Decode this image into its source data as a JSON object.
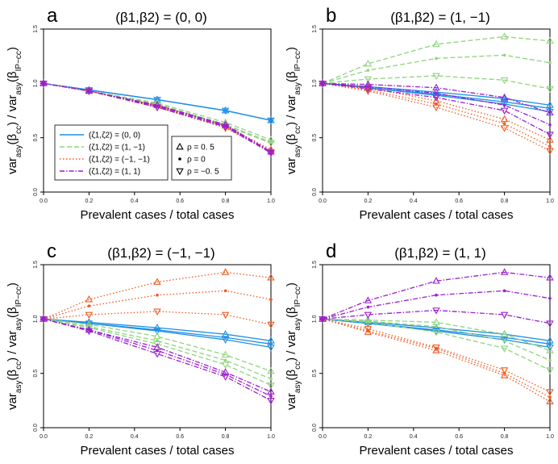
{
  "figure": {
    "xlabel": "Prevalent cases / total cases",
    "ylabel": "var_asy(β̂_cc) / var_asy(β̂_IP−cc)",
    "ylabel_parts": [
      "var",
      "asy",
      "(β",
      "cc",
      ") / var",
      "asy",
      "(β",
      "IP−cc",
      ")"
    ]
  },
  "colors": {
    "z00": "#1f8fe5",
    "z1m1": "#8fd47f",
    "zm1m1": "#f05a1e",
    "z11": "#9b1fcf"
  },
  "legend": {
    "lines": [
      {
        "label": "(ζ1,ζ2) = (0, 0)",
        "key": "z00",
        "style": "solid"
      },
      {
        "label": "(ζ1,ζ2) = (1, −1)",
        "key": "z1m1",
        "style": "dashed"
      },
      {
        "label": "(ζ1,ζ2) = (−1, −1)",
        "key": "zm1m1",
        "style": "dotted"
      },
      {
        "label": "(ζ1,ζ2) = (1, 1)",
        "key": "z11",
        "style": "dashdot"
      }
    ],
    "markers": [
      {
        "label": "ρ = 0. 5",
        "marker": "up"
      },
      {
        "label": "ρ = 0",
        "marker": "dot"
      },
      {
        "label": "ρ = −0. 5",
        "marker": "down"
      }
    ]
  },
  "chart_data": [
    {
      "panel": "a",
      "type": "line",
      "title": "(β1,β2) = (0, 0)",
      "xlabel": "Prevalent cases / total cases",
      "ylabel": "var_asy(β̂_cc) / var_asy(β̂_IP−cc)",
      "x": [
        0,
        0.2,
        0.5,
        0.8,
        1.0
      ],
      "xticks": [
        "0.0",
        "0.2",
        "0.4",
        "0.6",
        "0.8",
        "1.0"
      ],
      "yticks": [
        "0.0",
        "0.5",
        "1.0",
        "1.5"
      ],
      "xlim": [
        0,
        1
      ],
      "ylim": [
        0,
        1.5
      ],
      "series": [
        {
          "name": "(0,0) ρ=0.5",
          "key": "z00",
          "marker": "up",
          "values": [
            1,
            0.94,
            0.85,
            0.75,
            0.66
          ]
        },
        {
          "name": "(0,0) ρ=0",
          "key": "z00",
          "marker": "dot",
          "values": [
            1,
            0.94,
            0.85,
            0.75,
            0.66
          ]
        },
        {
          "name": "(0,0) ρ=-0.5",
          "key": "z00",
          "marker": "down",
          "values": [
            1,
            0.94,
            0.85,
            0.75,
            0.66
          ]
        },
        {
          "name": "(1,-1) ρ=0.5",
          "key": "z1m1",
          "marker": "up",
          "values": [
            1,
            0.93,
            0.82,
            0.64,
            0.48
          ]
        },
        {
          "name": "(1,-1) ρ=0",
          "key": "z1m1",
          "marker": "dot",
          "values": [
            1,
            0.93,
            0.81,
            0.62,
            0.46
          ]
        },
        {
          "name": "(1,-1) ρ=-0.5",
          "key": "z1m1",
          "marker": "down",
          "values": [
            1,
            0.93,
            0.8,
            0.61,
            0.45
          ]
        },
        {
          "name": "(-1,-1) ρ=0.5",
          "key": "zm1m1",
          "marker": "up",
          "values": [
            1,
            0.93,
            0.8,
            0.61,
            0.39
          ]
        },
        {
          "name": "(-1,-1) ρ=0",
          "key": "zm1m1",
          "marker": "dot",
          "values": [
            1,
            0.93,
            0.79,
            0.6,
            0.38
          ]
        },
        {
          "name": "(-1,-1) ρ=-0.5",
          "key": "zm1m1",
          "marker": "down",
          "values": [
            1,
            0.93,
            0.78,
            0.59,
            0.37
          ]
        },
        {
          "name": "(1,1) ρ=0.5",
          "key": "z11",
          "marker": "up",
          "values": [
            1,
            0.93,
            0.8,
            0.62,
            0.37
          ]
        },
        {
          "name": "(1,1) ρ=0",
          "key": "z11",
          "marker": "dot",
          "values": [
            1,
            0.93,
            0.79,
            0.61,
            0.37
          ]
        },
        {
          "name": "(1,1) ρ=-0.5",
          "key": "z11",
          "marker": "down",
          "values": [
            1,
            0.93,
            0.78,
            0.6,
            0.36
          ]
        }
      ]
    },
    {
      "panel": "b",
      "type": "line",
      "title": "(β1,β2) = (1, −1)",
      "xlabel": "Prevalent cases / total cases",
      "ylabel": "var_asy(β̂_cc) / var_asy(β̂_IP−cc)",
      "x": [
        0,
        0.2,
        0.5,
        0.8,
        1.0
      ],
      "xticks": [
        "0.0",
        "0.2",
        "0.4",
        "0.6",
        "0.8",
        "1.0"
      ],
      "yticks": [
        "0.0",
        "0.5",
        "1.0",
        "1.5"
      ],
      "xlim": [
        0,
        1
      ],
      "ylim": [
        0,
        1.5
      ],
      "series": [
        {
          "name": "(0,0) ρ=0.5",
          "key": "z00",
          "marker": "up",
          "values": [
            1,
            0.97,
            0.92,
            0.86,
            0.8
          ]
        },
        {
          "name": "(0,0) ρ=0",
          "key": "z00",
          "marker": "dot",
          "values": [
            1,
            0.96,
            0.9,
            0.83,
            0.77
          ]
        },
        {
          "name": "(0,0) ρ=-0.5",
          "key": "z00",
          "marker": "down",
          "values": [
            1,
            0.96,
            0.89,
            0.81,
            0.74
          ]
        },
        {
          "name": "(1,-1) ρ=0.5",
          "key": "z1m1",
          "marker": "up",
          "values": [
            1,
            1.18,
            1.36,
            1.43,
            1.39
          ]
        },
        {
          "name": "(1,-1) ρ=0",
          "key": "z1m1",
          "marker": "dot",
          "values": [
            1,
            1.12,
            1.23,
            1.26,
            1.19
          ]
        },
        {
          "name": "(1,-1) ρ=-0.5",
          "key": "z1m1",
          "marker": "down",
          "values": [
            1,
            1.04,
            1.07,
            1.03,
            0.95
          ]
        },
        {
          "name": "(-1,-1) ρ=0.5",
          "key": "zm1m1",
          "marker": "up",
          "values": [
            1,
            0.96,
            0.84,
            0.67,
            0.48
          ]
        },
        {
          "name": "(-1,-1) ρ=0",
          "key": "zm1m1",
          "marker": "dot",
          "values": [
            1,
            0.94,
            0.81,
            0.63,
            0.42
          ]
        },
        {
          "name": "(-1,-1) ρ=-0.5",
          "key": "zm1m1",
          "marker": "down",
          "values": [
            1,
            0.93,
            0.78,
            0.59,
            0.38
          ]
        },
        {
          "name": "(1,1) ρ=0.5",
          "key": "z11",
          "marker": "up",
          "values": [
            1,
            0.99,
            0.96,
            0.87,
            0.73
          ]
        },
        {
          "name": "(1,1) ρ=0",
          "key": "z11",
          "marker": "dot",
          "values": [
            1,
            0.97,
            0.91,
            0.8,
            0.62
          ]
        },
        {
          "name": "(1,1) ρ=-0.5",
          "key": "z11",
          "marker": "down",
          "values": [
            1,
            0.95,
            0.87,
            0.75,
            0.53
          ]
        }
      ]
    },
    {
      "panel": "c",
      "type": "line",
      "title": "(β1,β2) = (−1, −1)",
      "xlabel": "Prevalent cases / total cases",
      "ylabel": "var_asy(β̂_cc) / var_asy(β̂_IP−cc)",
      "x": [
        0,
        0.2,
        0.5,
        0.8,
        1.0
      ],
      "xticks": [
        "0.0",
        "0.2",
        "0.4",
        "0.6",
        "0.8",
        "1.0"
      ],
      "yticks": [
        "0.0",
        "0.5",
        "1.0",
        "1.5"
      ],
      "xlim": [
        0,
        1
      ],
      "ylim": [
        0,
        1.5
      ],
      "series": [
        {
          "name": "(0,0) ρ=0.5",
          "key": "z00",
          "marker": "up",
          "values": [
            1,
            0.97,
            0.92,
            0.86,
            0.8
          ]
        },
        {
          "name": "(0,0) ρ=0",
          "key": "z00",
          "marker": "dot",
          "values": [
            1,
            0.96,
            0.9,
            0.83,
            0.77
          ]
        },
        {
          "name": "(0,0) ρ=-0.5",
          "key": "z00",
          "marker": "down",
          "values": [
            1,
            0.96,
            0.89,
            0.81,
            0.74
          ]
        },
        {
          "name": "(1,-1) ρ=0.5",
          "key": "z1m1",
          "marker": "up",
          "values": [
            1,
            0.95,
            0.84,
            0.67,
            0.52
          ]
        },
        {
          "name": "(1,-1) ρ=0",
          "key": "z1m1",
          "marker": "dot",
          "values": [
            1,
            0.93,
            0.8,
            0.62,
            0.45
          ]
        },
        {
          "name": "(1,-1) ρ=-0.5",
          "key": "z1m1",
          "marker": "down",
          "values": [
            1,
            0.92,
            0.77,
            0.58,
            0.39
          ]
        },
        {
          "name": "(-1,-1) ρ=0.5",
          "key": "zm1m1",
          "marker": "up",
          "values": [
            1,
            1.18,
            1.34,
            1.43,
            1.38
          ]
        },
        {
          "name": "(-1,-1) ρ=0",
          "key": "zm1m1",
          "marker": "dot",
          "values": [
            1,
            1.12,
            1.22,
            1.26,
            1.18
          ]
        },
        {
          "name": "(-1,-1) ρ=-0.5",
          "key": "zm1m1",
          "marker": "down",
          "values": [
            1,
            1.04,
            1.07,
            1.04,
            0.95
          ]
        },
        {
          "name": "(1,1) ρ=0.5",
          "key": "z11",
          "marker": "up",
          "values": [
            1,
            0.9,
            0.74,
            0.51,
            0.33
          ]
        },
        {
          "name": "(1,1) ρ=0",
          "key": "z11",
          "marker": "dot",
          "values": [
            1,
            0.9,
            0.71,
            0.49,
            0.29
          ]
        },
        {
          "name": "(1,1) ρ=-0.5",
          "key": "z11",
          "marker": "down",
          "values": [
            1,
            0.89,
            0.68,
            0.47,
            0.25
          ]
        }
      ]
    },
    {
      "panel": "d",
      "type": "line",
      "title": "(β1,β2) = (1, 1)",
      "xlabel": "Prevalent cases / total cases",
      "ylabel": "var_asy(β̂_cc) / var_asy(β̂_IP−cc)",
      "x": [
        0,
        0.2,
        0.5,
        0.8,
        1.0
      ],
      "xticks": [
        "0.0",
        "0.2",
        "0.4",
        "0.6",
        "0.8",
        "1.0"
      ],
      "yticks": [
        "0.0",
        "0.5",
        "1.0",
        "1.5"
      ],
      "xlim": [
        0,
        1
      ],
      "ylim": [
        0,
        1.5
      ],
      "series": [
        {
          "name": "(0,0) ρ=0.5",
          "key": "z00",
          "marker": "up",
          "values": [
            1,
            0.97,
            0.92,
            0.86,
            0.8
          ]
        },
        {
          "name": "(0,0) ρ=0",
          "key": "z00",
          "marker": "dot",
          "values": [
            1,
            0.96,
            0.9,
            0.83,
            0.77
          ]
        },
        {
          "name": "(0,0) ρ=-0.5",
          "key": "z00",
          "marker": "down",
          "values": [
            1,
            0.96,
            0.89,
            0.81,
            0.74
          ]
        },
        {
          "name": "(1,-1) ρ=0.5",
          "key": "z1m1",
          "marker": "up",
          "values": [
            1,
            0.99,
            0.97,
            0.86,
            0.71
          ]
        },
        {
          "name": "(1,-1) ρ=0",
          "key": "z1m1",
          "marker": "dot",
          "values": [
            1,
            0.98,
            0.93,
            0.8,
            0.62
          ]
        },
        {
          "name": "(1,-1) ρ=-0.5",
          "key": "z1m1",
          "marker": "down",
          "values": [
            1,
            0.97,
            0.88,
            0.73,
            0.53
          ]
        },
        {
          "name": "(-1,-1) ρ=0.5",
          "key": "zm1m1",
          "marker": "up",
          "values": [
            1,
            0.88,
            0.71,
            0.48,
            0.24
          ]
        },
        {
          "name": "(-1,-1) ρ=0",
          "key": "zm1m1",
          "marker": "dot",
          "values": [
            1,
            0.89,
            0.73,
            0.5,
            0.28
          ]
        },
        {
          "name": "(-1,-1) ρ=-0.5",
          "key": "zm1m1",
          "marker": "down",
          "values": [
            1,
            0.91,
            0.74,
            0.53,
            0.33
          ]
        },
        {
          "name": "(1,1) ρ=0.5",
          "key": "z11",
          "marker": "up",
          "values": [
            1,
            1.17,
            1.35,
            1.43,
            1.38
          ]
        },
        {
          "name": "(1,1) ρ=0",
          "key": "z11",
          "marker": "dot",
          "values": [
            1,
            1.11,
            1.22,
            1.26,
            1.19
          ]
        },
        {
          "name": "(1,1) ρ=-0.5",
          "key": "z11",
          "marker": "down",
          "values": [
            1,
            1.04,
            1.08,
            1.04,
            0.96
          ]
        }
      ]
    }
  ]
}
